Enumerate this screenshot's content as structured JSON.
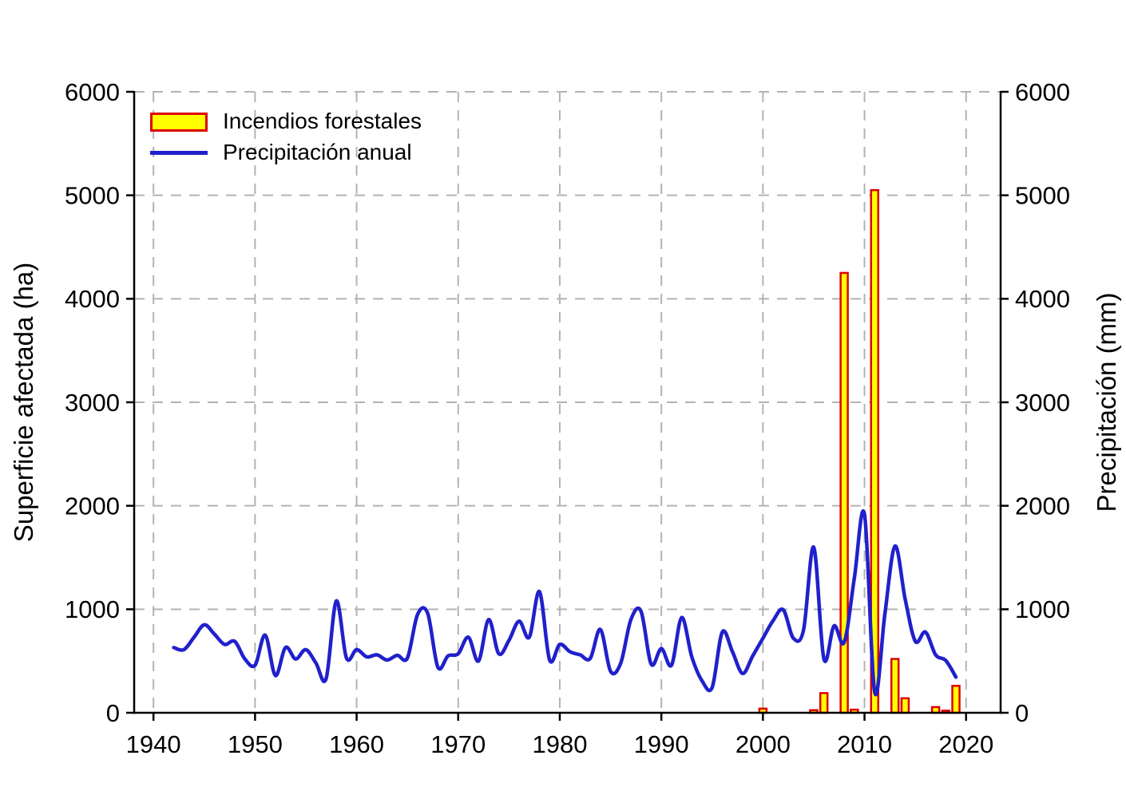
{
  "chart": {
    "y_left_label": "Superficie afectada (ha)",
    "y_right_label": "Precipitación (mm)",
    "legend": {
      "bar_label": "Incendios forestales",
      "line_label": "Precipitación anual"
    },
    "colors": {
      "bar_fill": "#ffff00",
      "bar_border": "#dd0000",
      "line": "#2020cc",
      "grid": "#b3b3b3",
      "axis": "#000000",
      "background": "#ffffff"
    }
  },
  "chart_data": {
    "type": "combo",
    "title": "",
    "xlabel": "",
    "ylabel_left": "Superficie afectada (ha)",
    "ylabel_right": "Precipitación (mm)",
    "xlim": [
      1938.1,
      2023.4
    ],
    "ylim": [
      0,
      6000
    ],
    "x_ticks": [
      1940,
      1950,
      1960,
      1970,
      1980,
      1990,
      2000,
      2010,
      2020
    ],
    "y_ticks_left": [
      0,
      1000,
      2000,
      3000,
      4000,
      5000,
      6000
    ],
    "y_ticks_right": [
      0,
      1000,
      2000,
      3000,
      4000,
      5000,
      6000
    ],
    "grid": true,
    "legend_position": "top-left",
    "series": [
      {
        "name": "Incendios forestales",
        "type": "bar",
        "axis": "left",
        "color": "#ffff00",
        "border_color": "#dd0000",
        "x": [
          2000,
          2005,
          2006,
          2008,
          2009,
          2011,
          2013,
          2014,
          2017,
          2018,
          2019
        ],
        "values": [
          40,
          25,
          190,
          4250,
          30,
          5050,
          520,
          140,
          55,
          20,
          260
        ]
      },
      {
        "name": "Precipitación anual",
        "type": "line",
        "axis": "right",
        "color": "#2020cc",
        "x": [
          1942,
          1943,
          1944,
          1945,
          1946,
          1947,
          1948,
          1949,
          1950,
          1951,
          1952,
          1953,
          1954,
          1955,
          1956,
          1957,
          1958,
          1959,
          1960,
          1961,
          1962,
          1963,
          1964,
          1965,
          1966,
          1967,
          1968,
          1969,
          1970,
          1971,
          1972,
          1973,
          1974,
          1975,
          1976,
          1977,
          1978,
          1979,
          1980,
          1981,
          1982,
          1983,
          1984,
          1985,
          1986,
          1987,
          1988,
          1989,
          1990,
          1991,
          1992,
          1993,
          1994,
          1995,
          1996,
          1997,
          1998,
          1999,
          2000,
          2001,
          2002,
          2003,
          2004,
          2005,
          2006,
          2007,
          2008,
          2009,
          2010,
          2011,
          2012,
          2013,
          2014,
          2015,
          2016,
          2017,
          2018,
          2019
        ],
        "values": [
          630,
          610,
          730,
          850,
          760,
          660,
          690,
          520,
          460,
          750,
          360,
          630,
          520,
          610,
          480,
          330,
          1080,
          530,
          610,
          540,
          560,
          510,
          555,
          530,
          950,
          960,
          440,
          550,
          570,
          730,
          500,
          900,
          570,
          700,
          885,
          730,
          1170,
          510,
          660,
          590,
          560,
          525,
          805,
          400,
          480,
          900,
          980,
          470,
          620,
          460,
          920,
          540,
          310,
          245,
          780,
          590,
          380,
          550,
          720,
          890,
          995,
          720,
          800,
          1600,
          520,
          840,
          680,
          1300,
          1915,
          200,
          950,
          1610,
          1100,
          690,
          780,
          560,
          505,
          345
        ]
      }
    ]
  }
}
